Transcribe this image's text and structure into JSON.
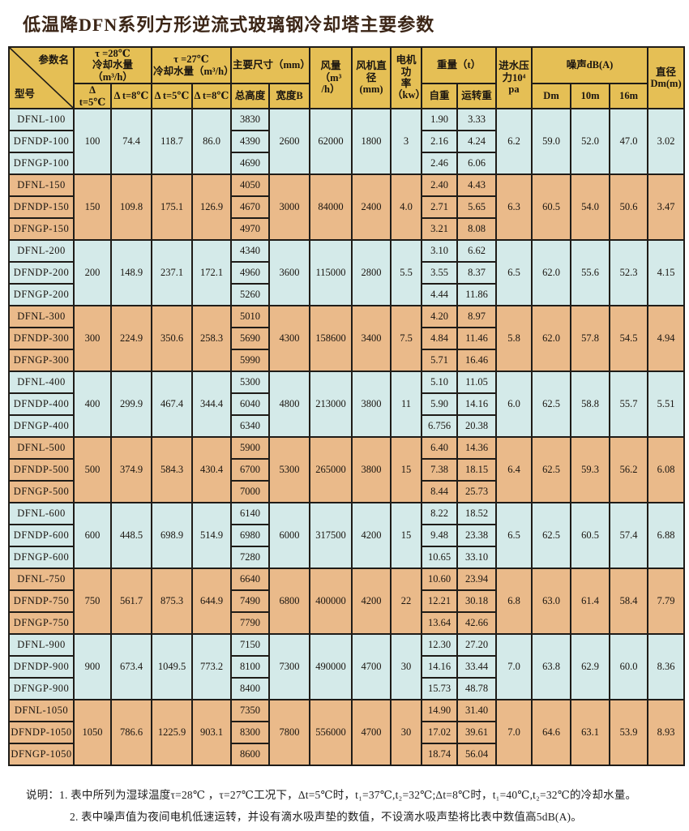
{
  "title": "低温降DFN系列方形逆流式玻璃钢冷却塔主要参数",
  "colors": {
    "header_gold": "#e5bf55",
    "row_blue": "#d4eae9",
    "row_tan": "#eaba8a",
    "border": "#1f1c18"
  },
  "table": {
    "header": {
      "corner_top": "参数名",
      "corner_bottom": "型号",
      "tau28": "τ =28℃\n冷却水量（m³/h）",
      "tau27": "τ =27℃\n冷却水量（m³/h）",
      "dims": "主要尺寸（mm）",
      "air_volume": "风量\n（m³\n/h）",
      "fan_diameter": "风机直\n径\n(mm)",
      "motor_power": "电机功\n率（kw）",
      "weight": "重量（t）",
      "water_pressure": "进水压\n力10⁴\npa",
      "noise": "噪声dB(A)",
      "diameter": "直径\nDm(m)",
      "sub_dt5_a": "Δ t=5℃",
      "sub_dt8_a": "Δ t=8℃",
      "sub_dt5_b": "Δ t=5℃",
      "sub_dt8_b": "Δ t=8℃",
      "sub_height": "总高度",
      "sub_width": "宽度B",
      "sub_self_weight": "自重",
      "sub_run_weight": "运转重",
      "sub_dm": "Dm",
      "sub_10m": "10m",
      "sub_16m": "16m"
    },
    "groups": [
      {
        "models": [
          "DFNL-100",
          "DFNDP-100",
          "DFNGP-100"
        ],
        "water_flow": [
          "100",
          "74.4",
          "118.7",
          "86.0"
        ],
        "heights": [
          "3830",
          "4390",
          "4690"
        ],
        "width_b": "2600",
        "air_volume": "62000",
        "fan_diameter": "1800",
        "motor_power": "3",
        "self_weight": [
          "1.90",
          "2.16",
          "2.46"
        ],
        "run_weight": [
          "3.33",
          "4.24",
          "6.06"
        ],
        "water_pressure": "6.2",
        "noise": [
          "59.0",
          "52.0",
          "47.0"
        ],
        "diameter": "3.02"
      },
      {
        "models": [
          "DFNL-150",
          "DFNDP-150",
          "DFNGP-150"
        ],
        "water_flow": [
          "150",
          "109.8",
          "175.1",
          "126.9"
        ],
        "heights": [
          "4050",
          "4670",
          "4970"
        ],
        "width_b": "3000",
        "air_volume": "84000",
        "fan_diameter": "2400",
        "motor_power": "4.0",
        "self_weight": [
          "2.40",
          "2.71",
          "3.21"
        ],
        "run_weight": [
          "4.43",
          "5.65",
          "8.08"
        ],
        "water_pressure": "6.3",
        "noise": [
          "60.5",
          "54.0",
          "50.6"
        ],
        "diameter": "3.47"
      },
      {
        "models": [
          "DFNL-200",
          "DFNDP-200",
          "DFNGP-200"
        ],
        "water_flow": [
          "200",
          "148.9",
          "237.1",
          "172.1"
        ],
        "heights": [
          "4340",
          "4960",
          "5260"
        ],
        "width_b": "3600",
        "air_volume": "115000",
        "fan_diameter": "2800",
        "motor_power": "5.5",
        "self_weight": [
          "3.10",
          "3.55",
          "4.44"
        ],
        "run_weight": [
          "6.62",
          "8.37",
          "11.86"
        ],
        "water_pressure": "6.5",
        "noise": [
          "62.0",
          "55.6",
          "52.3"
        ],
        "diameter": "4.15"
      },
      {
        "models": [
          "DFNL-300",
          "DFNDP-300",
          "DFNGP-300"
        ],
        "water_flow": [
          "300",
          "224.9",
          "350.6",
          "258.3"
        ],
        "heights": [
          "5010",
          "5690",
          "5990"
        ],
        "width_b": "4300",
        "air_volume": "158600",
        "fan_diameter": "3400",
        "motor_power": "7.5",
        "self_weight": [
          "4.20",
          "4.84",
          "5.71"
        ],
        "run_weight": [
          "8.97",
          "11.46",
          "16.46"
        ],
        "water_pressure": "5.8",
        "noise": [
          "62.0",
          "57.8",
          "54.5"
        ],
        "diameter": "4.94"
      },
      {
        "models": [
          "DFNL-400",
          "DFNDP-400",
          "DFNGP-400"
        ],
        "water_flow": [
          "400",
          "299.9",
          "467.4",
          "344.4"
        ],
        "heights": [
          "5300",
          "6040",
          "6340"
        ],
        "width_b": "4800",
        "air_volume": "213000",
        "fan_diameter": "3800",
        "motor_power": "11",
        "self_weight": [
          "5.10",
          "5.90",
          "6.756"
        ],
        "run_weight": [
          "11.05",
          "14.16",
          "20.38"
        ],
        "water_pressure": "6.0",
        "noise": [
          "62.5",
          "58.8",
          "55.7"
        ],
        "diameter": "5.51"
      },
      {
        "models": [
          "DFNL-500",
          "DFNDP-500",
          "DFNGP-500"
        ],
        "water_flow": [
          "500",
          "374.9",
          "584.3",
          "430.4"
        ],
        "heights": [
          "5900",
          "6700",
          "7000"
        ],
        "width_b": "5300",
        "air_volume": "265000",
        "fan_diameter": "3800",
        "motor_power": "15",
        "self_weight": [
          "6.40",
          "7.38",
          "8.44"
        ],
        "run_weight": [
          "14.36",
          "18.15",
          "25.73"
        ],
        "water_pressure": "6.4",
        "noise": [
          "62.5",
          "59.3",
          "56.2"
        ],
        "diameter": "6.08"
      },
      {
        "models": [
          "DFNL-600",
          "DFNDP-600",
          "DFNGP-600"
        ],
        "water_flow": [
          "600",
          "448.5",
          "698.9",
          "514.9"
        ],
        "heights": [
          "6140",
          "6980",
          "7280"
        ],
        "width_b": "6000",
        "air_volume": "317500",
        "fan_diameter": "4200",
        "motor_power": "15",
        "self_weight": [
          "8.22",
          "9.48",
          "10.65"
        ],
        "run_weight": [
          "18.52",
          "23.38",
          "33.10"
        ],
        "water_pressure": "6.5",
        "noise": [
          "62.5",
          "60.5",
          "57.4"
        ],
        "diameter": "6.88"
      },
      {
        "models": [
          "DFNL-750",
          "DFNDP-750",
          "DFNGP-750"
        ],
        "water_flow": [
          "750",
          "561.7",
          "875.3",
          "644.9"
        ],
        "heights": [
          "6640",
          "7490",
          "7790"
        ],
        "width_b": "6800",
        "air_volume": "400000",
        "fan_diameter": "4200",
        "motor_power": "22",
        "self_weight": [
          "10.60",
          "12.21",
          "13.64"
        ],
        "run_weight": [
          "23.94",
          "30.18",
          "42.66"
        ],
        "water_pressure": "6.8",
        "noise": [
          "63.0",
          "61.4",
          "58.4"
        ],
        "diameter": "7.79"
      },
      {
        "models": [
          "DFNL-900",
          "DFNDP-900",
          "DFNGP-900"
        ],
        "water_flow": [
          "900",
          "673.4",
          "1049.5",
          "773.2"
        ],
        "heights": [
          "7150",
          "8100",
          "8400"
        ],
        "width_b": "7300",
        "air_volume": "490000",
        "fan_diameter": "4700",
        "motor_power": "30",
        "self_weight": [
          "12.30",
          "14.16",
          "15.73"
        ],
        "run_weight": [
          "27.20",
          "33.44",
          "48.78"
        ],
        "water_pressure": "7.0",
        "noise": [
          "63.8",
          "62.9",
          "60.0"
        ],
        "diameter": "8.36"
      },
      {
        "models": [
          "DFNL-1050",
          "DFNDP-1050",
          "DFNGP-1050"
        ],
        "water_flow": [
          "1050",
          "786.6",
          "1225.9",
          "903.1"
        ],
        "heights": [
          "7350",
          "8300",
          "8600"
        ],
        "width_b": "7800",
        "air_volume": "556000",
        "fan_diameter": "4700",
        "motor_power": "30",
        "self_weight": [
          "14.90",
          "17.02",
          "18.74"
        ],
        "run_weight": [
          "31.40",
          "39.61",
          "56.04"
        ],
        "water_pressure": "7.0",
        "noise": [
          "64.6",
          "63.1",
          "53.9"
        ],
        "diameter": "8.93"
      }
    ]
  },
  "notes": {
    "label": "说明：",
    "line1": "1. 表中所列为湿球温度τ=28℃ ，τ=27℃工况下，Δt=5℃时，t₁=37℃,t₂=32℃;Δt=8℃时，t₁=40℃,t₂=32℃的冷却水量。",
    "line2": "2. 表中噪声值为夜间电机低速运转，并设有滴水吸声垫的数值，不设滴水吸声垫将比表中数值高5dB(A)。"
  }
}
